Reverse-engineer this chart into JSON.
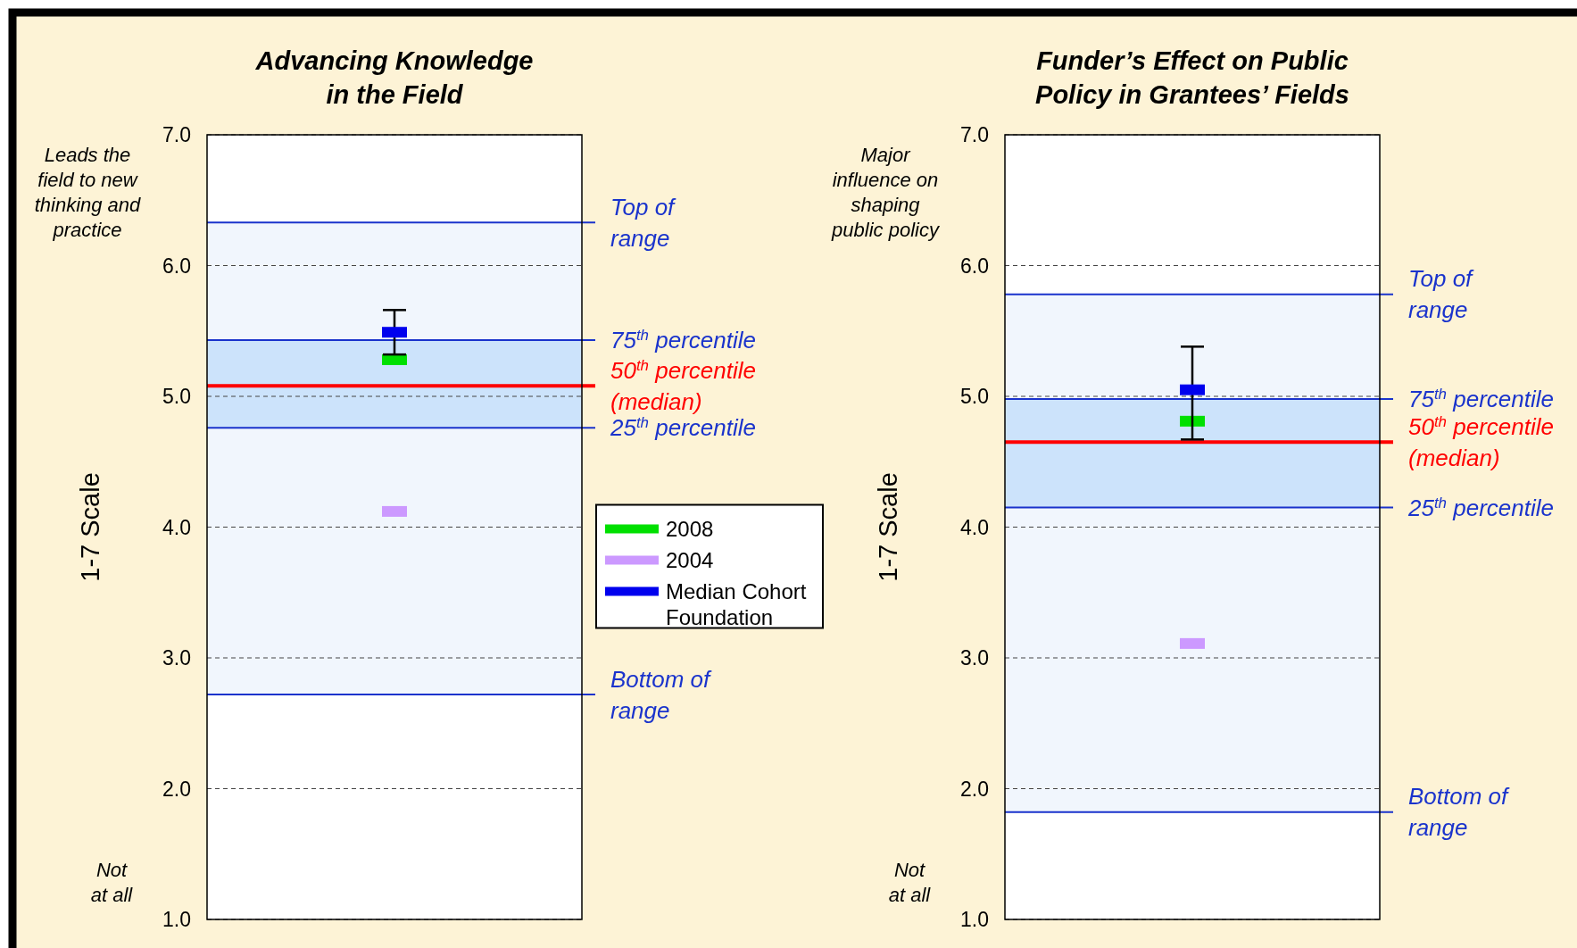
{
  "chart_data": [
    {
      "type": "scatter",
      "title": "Advancing Knowledge\nin the Field",
      "ylabel": "1-7 Scale",
      "categories": [
        null
      ],
      "ylim": [
        1,
        7
      ],
      "yticks": [
        {
          "value": 1,
          "label": "1.0"
        },
        {
          "value": 2,
          "label": "2.0"
        },
        {
          "value": 3,
          "label": "3.0"
        },
        {
          "value": 4,
          "label": "4.0"
        },
        {
          "value": 5,
          "label": "5.0"
        },
        {
          "value": 6,
          "label": "6.0"
        },
        {
          "value": 7,
          "label": "7.0"
        }
      ],
      "grid": "y",
      "legend": "right",
      "series": [
        {
          "name": "2008",
          "color": "#00e000",
          "values": [
            5.28
          ]
        },
        {
          "name": "2004",
          "color": "#cc99ff",
          "values": [
            4.12
          ]
        },
        {
          "name": "Median Cohort\nFoundation",
          "color": "#0000ee",
          "values": [
            5.49
          ],
          "errors": [
            [
              5.32,
              5.66
            ]
          ]
        }
      ],
      "bands": [
        {
          "axis": "y",
          "from": 2.72,
          "to": 6.33,
          "color": "#f1f6fd"
        },
        {
          "axis": "y",
          "from": 4.76,
          "to": 5.43,
          "color": "#cce3fb"
        }
      ],
      "ref_lines": [
        {
          "axis": "y",
          "value": 6.33,
          "label": "Top of\nrange",
          "color": "#1a33cc"
        },
        {
          "axis": "y",
          "value": 5.43,
          "label": "75$^{th}$ percentile",
          "color": "#1a33cc"
        },
        {
          "axis": "y",
          "value": 5.08,
          "label": "50$^{th}$ percentile\n(median)",
          "color": "#ff0000"
        },
        {
          "axis": "y",
          "value": 4.76,
          "label": "25$^{th}$ percentile",
          "color": "#1a33cc"
        },
        {
          "axis": "y",
          "value": 2.72,
          "label": "Bottom of\nrange",
          "color": "#1a33cc"
        }
      ],
      "annotations": [
        "Leads the\nfield to new\nthinking and\npractice",
        "Not\nat all"
      ]
    },
    {
      "type": "scatter",
      "title": "Funder’s Effect on Public\nPolicy in Grantees’ Fields",
      "ylabel": "1-7 Scale",
      "categories": [
        null
      ],
      "ylim": [
        1,
        7
      ],
      "yticks": [
        {
          "value": 1,
          "label": "1.0"
        },
        {
          "value": 2,
          "label": "2.0"
        },
        {
          "value": 3,
          "label": "3.0"
        },
        {
          "value": 4,
          "label": "4.0"
        },
        {
          "value": 5,
          "label": "5.0"
        },
        {
          "value": 6,
          "label": "6.0"
        },
        {
          "value": 7,
          "label": "7.0"
        }
      ],
      "grid": "y",
      "series": [
        {
          "color": "#00e000",
          "values": [
            4.81
          ]
        },
        {
          "color": "#cc99ff",
          "values": [
            3.11
          ]
        },
        {
          "color": "#0000ee",
          "values": [
            5.05
          ],
          "errors": [
            [
              4.67,
              5.38
            ]
          ]
        }
      ],
      "bands": [
        {
          "axis": "y",
          "from": 1.82,
          "to": 5.78,
          "color": "#f1f6fd"
        },
        {
          "axis": "y",
          "from": 4.15,
          "to": 4.98,
          "color": "#cce3fb"
        }
      ],
      "ref_lines": [
        {
          "axis": "y",
          "value": 5.78,
          "label": "Top of\nrange",
          "color": "#1a33cc"
        },
        {
          "axis": "y",
          "value": 4.98,
          "label": "75$^{th}$ percentile",
          "color": "#1a33cc"
        },
        {
          "axis": "y",
          "value": 4.65,
          "label": "50$^{th}$ percentile\n(median)",
          "color": "#ff0000"
        },
        {
          "axis": "y",
          "value": 4.15,
          "label": "25$^{th}$ percentile",
          "color": "#1a33cc"
        },
        {
          "axis": "y",
          "value": 1.82,
          "label": "Bottom of\nrange",
          "color": "#1a33cc"
        }
      ],
      "annotations": [
        "Major\ninfluence on\nshaping\npublic policy",
        "Not\nat all"
      ]
    }
  ]
}
